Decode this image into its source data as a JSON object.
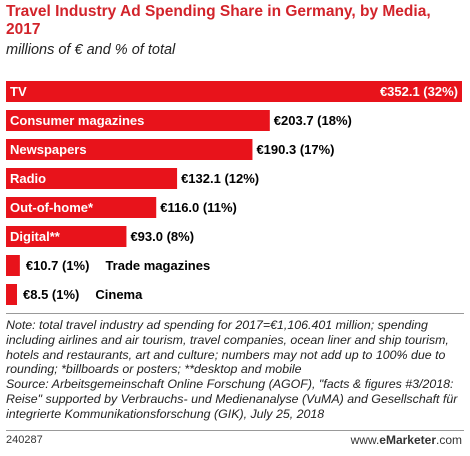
{
  "title": "Travel Industry Ad Spending Share in Germany, by Media, 2017",
  "subtitle": "millions of € and % of total",
  "chart_data": {
    "type": "bar",
    "orientation": "horizontal",
    "categories": [
      "TV",
      "Consumer magazines",
      "Newspapers",
      "Radio",
      "Out-of-home*",
      "Digital**",
      "Trade magazines",
      "Cinema"
    ],
    "values": [
      352.1,
      203.7,
      190.3,
      132.1,
      116.0,
      93.0,
      10.7,
      8.5
    ],
    "shares_pct": [
      32,
      18,
      17,
      12,
      11,
      8,
      1,
      1
    ],
    "value_labels": [
      "€352.1 (32%)",
      "€203.7 (18%)",
      "€190.3 (17%)",
      "€132.1 (12%)",
      "€116.0 (11%)",
      "€93.0 (8%)",
      "€10.7 (1%)",
      "€8.5 (1%)"
    ],
    "bar_color": "#e8131b",
    "grid": false,
    "legend": "none"
  },
  "note": "Note: total travel industry ad spending for 2017=€1,106.401 million; spending including airlines and air tourism, travel companies, ocean liner and ship tourism, hotels and restaurants, art and culture; numbers may not add up to 100% due to rounding; *billboards or posters; **desktop and mobile",
  "source": "Source: Arbeitsgemeinschaft Online Forschung (AGOF), \"facts & figures #3/2018: Reise\" supported by Verbrauchs- und Medienanalyse (VuMA) and Gesellschaft für integrierte Kommunikationsforschung (GIK), July 25, 2018",
  "footer": {
    "chart_id": "240287",
    "brand_prefix": "www.",
    "brand_name": "eMarketer",
    "brand_suffix": ".com"
  }
}
